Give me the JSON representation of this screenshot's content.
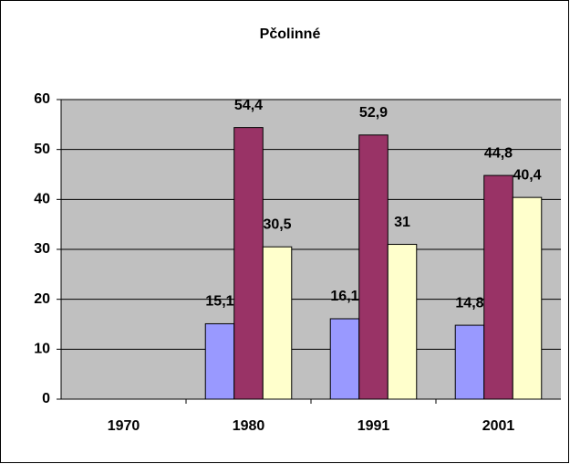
{
  "chart_data": {
    "type": "bar",
    "title": "Pčolinné",
    "categories": [
      "1970",
      "1980",
      "1991",
      "2001"
    ],
    "series": [
      {
        "color": "#9999ff",
        "values": [
          null,
          15.1,
          16.1,
          14.8
        ],
        "value_labels": [
          null,
          "15,1",
          "16,1",
          "14,8"
        ]
      },
      {
        "color": "#993366",
        "values": [
          null,
          54.4,
          52.9,
          44.8
        ],
        "value_labels": [
          null,
          "54,4",
          "52,9",
          "44,8"
        ]
      },
      {
        "color": "#ffffcc",
        "values": [
          null,
          30.5,
          31,
          40.4
        ],
        "value_labels": [
          null,
          "30,5",
          "31",
          "40,4"
        ]
      }
    ],
    "ylim": [
      0,
      60
    ],
    "yticks": [
      0,
      10,
      20,
      30,
      40,
      50,
      60
    ],
    "grid": true,
    "plot_background": "#c0c0c0"
  }
}
